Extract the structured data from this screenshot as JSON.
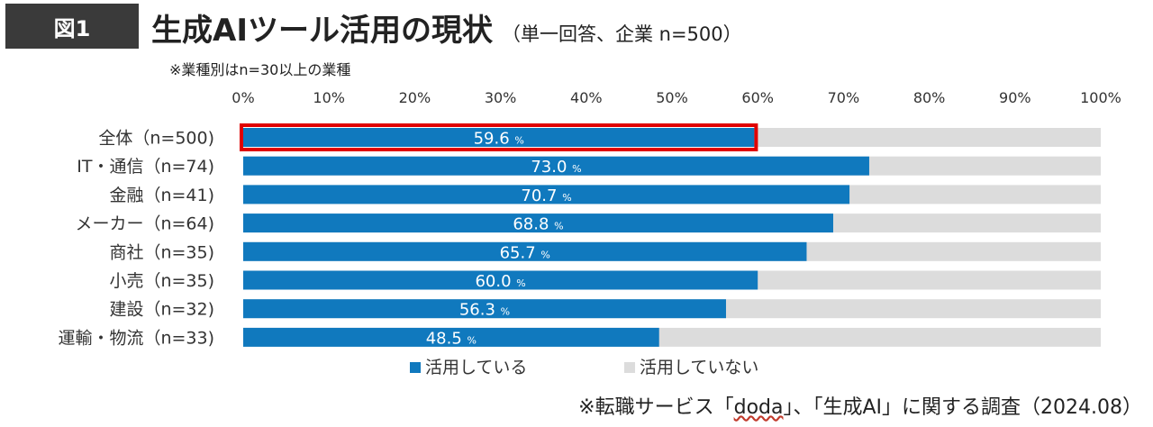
{
  "header": {
    "figure_label": "図1",
    "title": "生成AIツール活用の現状",
    "subtitle": "（単一回答、企業 n=500）",
    "note": "※業種別はn=30以上の業種"
  },
  "source": {
    "prefix": "※転職サービス「",
    "service": "doda",
    "suffix": "」、「生成AI」に関する調査（2024.08）"
  },
  "colors": {
    "used": "#1079be",
    "not_used": "#dcdcdc",
    "highlight": "#e00000"
  },
  "chart_data": {
    "type": "bar",
    "orientation": "horizontal",
    "stacked": true,
    "title": "生成AIツール活用の現状",
    "categories": [
      "全体（n=500)",
      "IT・通信（n=74)",
      "金融（n=41)",
      "メーカー（n=64)",
      "商社（n=35)",
      "小売（n=35)",
      "建設（n=32)",
      "運輸・物流（n=33)"
    ],
    "series": [
      {
        "name": "活用している",
        "values": [
          59.6,
          73.0,
          70.7,
          68.8,
          65.7,
          60.0,
          56.3,
          48.5
        ]
      },
      {
        "name": "活用していない",
        "values": [
          40.4,
          27.0,
          29.3,
          31.2,
          34.3,
          40.0,
          43.7,
          51.5
        ]
      }
    ],
    "value_labels": [
      "59.6",
      "73.0",
      "70.7",
      "68.8",
      "65.7",
      "60.0",
      "56.3",
      "48.5"
    ],
    "value_suffix": "%",
    "x_ticks": [
      "0%",
      "10%",
      "20%",
      "30%",
      "40%",
      "50%",
      "60%",
      "70%",
      "80%",
      "90%",
      "100%"
    ],
    "xlim": [
      0,
      100
    ],
    "highlighted_category": "全体（n=500)",
    "legend_position": "bottom",
    "grid": false
  }
}
